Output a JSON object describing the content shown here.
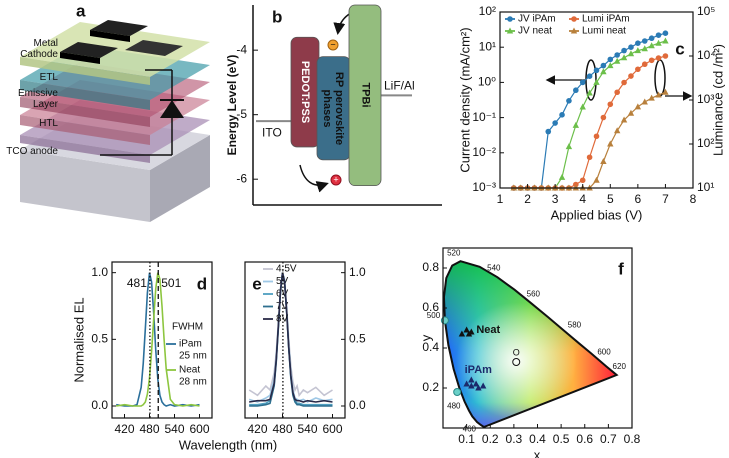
{
  "panel_a": {
    "label": "a",
    "layers": [
      "Metal Cathode",
      "ETL",
      "Emissive Layer",
      "HTL",
      "TCO anode"
    ]
  },
  "panel_b": {
    "label": "b",
    "ylabel": "Energy Level (eV)",
    "ylim": [
      -6.4,
      -3.3
    ],
    "yticks": [
      -4,
      -5,
      -6
    ],
    "electrodes": [
      {
        "name": "ITO",
        "level": -5.1
      },
      {
        "name": "LiF/Al",
        "level": -4.7
      }
    ],
    "layers": [
      {
        "name": "PEDOT:PSS",
        "top": -3.8,
        "bottom": -5.5,
        "color": "#8e3b4a"
      },
      {
        "name": "RP perovskite phases",
        "top": -4.1,
        "bottom": -5.7,
        "color": "#3b6e8a"
      },
      {
        "name": "TPBi",
        "top": -3.3,
        "bottom": -6.1,
        "color": "#94bd7e"
      }
    ],
    "charges": [
      "−",
      "+"
    ]
  },
  "chart_data": [
    {
      "type": "line",
      "label": "c",
      "xlabel": "Applied bias (V)",
      "ylabel": "Current density (mA/cm²)",
      "y2label": "Luminance (cd /m²)",
      "x": [
        1.5,
        1.75,
        2,
        2.25,
        2.5,
        2.75,
        3,
        3.25,
        3.5,
        3.75,
        4,
        4.25,
        4.5,
        4.75,
        5,
        5.25,
        5.5,
        5.75,
        6,
        6.25,
        6.5,
        6.75,
        7
      ],
      "xlim": [
        1,
        8
      ],
      "xticks": [
        1,
        2,
        3,
        4,
        5,
        6,
        7,
        8
      ],
      "log_y": true,
      "ylim": [
        0.001,
        100
      ],
      "yticks": [
        {
          "value": 0.001,
          "label": "10⁻³"
        },
        {
          "value": 0.01,
          "label": "10⁻²"
        },
        {
          "value": 0.1,
          "label": "10⁻¹"
        },
        {
          "value": 1,
          "label": "10⁰"
        },
        {
          "value": 10,
          "label": "10¹"
        },
        {
          "value": 100,
          "label": "10²"
        }
      ],
      "y2lim": [
        10,
        100000
      ],
      "y2ticks": [
        {
          "value": 10,
          "label": "10¹"
        },
        {
          "value": 100,
          "label": "10²"
        },
        {
          "value": 1000,
          "label": "10³"
        },
        {
          "value": 10000,
          "label": "10⁴"
        },
        {
          "value": 100000,
          "label": "10⁵"
        }
      ],
      "series": [
        {
          "name": "JV iPAm",
          "color": "#2b7bb5",
          "marker": "circle",
          "values": [
            0.001,
            0.001,
            0.001,
            0.001,
            0.001,
            0.04,
            0.07,
            0.12,
            0.3,
            0.6,
            1,
            1.5,
            2.2,
            3,
            4.5,
            6,
            8,
            10,
            13,
            15,
            18,
            22,
            25
          ]
        },
        {
          "name": "JV neat",
          "color": "#6cbf4a",
          "marker": "triangle",
          "values": [
            0.001,
            0.001,
            0.001,
            0.001,
            0.001,
            0.001,
            0.001,
            0.002,
            0.015,
            0.06,
            0.2,
            0.5,
            1,
            2,
            3,
            4,
            5,
            6.5,
            8,
            9,
            11,
            13,
            15
          ]
        },
        {
          "name": "Lumi iPAm",
          "color": "#e06a3a",
          "marker": "circle",
          "axis": "y2",
          "values": [
            10,
            10,
            10,
            10,
            10,
            10,
            10,
            10,
            10,
            12,
            15,
            50,
            150,
            400,
            800,
            1500,
            2500,
            3500,
            5000,
            6500,
            8000,
            9000,
            10000
          ]
        },
        {
          "name": "Lumi neat",
          "color": "#b8803c",
          "marker": "triangle",
          "axis": "y2",
          "values": [
            10,
            10,
            10,
            10,
            10,
            10,
            10,
            10,
            10,
            10,
            10,
            10,
            15,
            40,
            100,
            200,
            350,
            500,
            700,
            900,
            1100,
            1300,
            1500
          ]
        }
      ]
    },
    {
      "type": "line",
      "label": "d",
      "xlabel": "Wavelength (nm)",
      "ylabel": "Normalised EL",
      "fwhm_title": "FWHM",
      "x": [
        400,
        420,
        440,
        450,
        460,
        465,
        470,
        475,
        480,
        485,
        490,
        495,
        500,
        505,
        510,
        515,
        520,
        530,
        540,
        560,
        580,
        600
      ],
      "xlim": [
        390,
        630
      ],
      "xticks": [
        420,
        480,
        540,
        600
      ],
      "ylim": [
        -0.09,
        1.08
      ],
      "yticks": [
        {
          "value": 0,
          "label": "0.0"
        },
        {
          "value": 0.5,
          "label": "0.5"
        },
        {
          "value": 1,
          "label": "1.0"
        }
      ],
      "peaks": [
        481,
        501
      ],
      "series": [
        {
          "name": "iPam",
          "fwhm_label": "25 nm",
          "color": "#2a6f9b",
          "values": [
            0.01,
            0,
            0,
            0.01,
            0.14,
            0.32,
            0.58,
            0.85,
            1,
            0.93,
            0.7,
            0.42,
            0.2,
            0.08,
            0.03,
            0.01,
            0,
            0.01,
            0,
            0.01,
            0,
            0.01
          ]
        },
        {
          "name": "Neat",
          "fwhm_label": "28 nm",
          "color": "#8dc63f",
          "values": [
            0,
            0.01,
            0,
            0,
            0,
            0.01,
            0.03,
            0.09,
            0.21,
            0.41,
            0.65,
            0.88,
            1,
            0.95,
            0.75,
            0.5,
            0.28,
            0.05,
            0.01,
            0,
            0.01,
            0
          ]
        }
      ]
    },
    {
      "type": "line",
      "label": "e",
      "ytick_side": "right",
      "x": [
        400,
        420,
        440,
        450,
        460,
        465,
        470,
        475,
        480,
        485,
        490,
        495,
        500,
        505,
        510,
        515,
        520,
        530,
        540,
        560,
        580,
        600
      ],
      "xlim": [
        390,
        630
      ],
      "xticks": [
        420,
        480,
        540,
        600
      ],
      "ylim": [
        -0.09,
        1.08
      ],
      "yticks": [
        {
          "value": 0,
          "label": "0.0"
        },
        {
          "value": 0.5,
          "label": "0.5"
        },
        {
          "value": 1,
          "label": "1.0"
        }
      ],
      "reference_line": 481,
      "series": [
        {
          "name": "4.5V",
          "color": "#c4c4d2",
          "values": [
            0.12,
            0.08,
            0.15,
            0.12,
            0.25,
            0.4,
            0.62,
            0.88,
            1,
            0.95,
            0.74,
            0.5,
            0.3,
            0.18,
            0.12,
            0.15,
            0.08,
            0.12,
            0.1,
            0.14,
            0.08,
            0.12
          ]
        },
        {
          "name": "5V",
          "color": "#9fc8e6",
          "values": [
            0.05,
            0.03,
            0.06,
            0.08,
            0.2,
            0.37,
            0.6,
            0.86,
            1,
            0.94,
            0.72,
            0.46,
            0.25,
            0.12,
            0.06,
            0.05,
            0.04,
            0.05,
            0.03,
            0.06,
            0.04,
            0.05
          ]
        },
        {
          "name": "6V",
          "color": "#4f9fc0",
          "values": [
            0.01,
            0.01,
            0.02,
            0.04,
            0.16,
            0.34,
            0.59,
            0.85,
            1,
            0.93,
            0.71,
            0.44,
            0.22,
            0.09,
            0.04,
            0.02,
            0.02,
            0.01,
            0.01,
            0.01,
            0.01,
            0.01
          ]
        },
        {
          "name": "7V",
          "color": "#2e6f8f",
          "values": [
            0,
            0,
            0.01,
            0.02,
            0.15,
            0.33,
            0.58,
            0.85,
            1,
            0.93,
            0.7,
            0.43,
            0.21,
            0.08,
            0.03,
            0.01,
            0.01,
            0,
            0,
            0,
            0,
            0
          ]
        },
        {
          "name": "8V",
          "color": "#2a2a48",
          "values": [
            0.03,
            0.04,
            0.04,
            0.05,
            0.17,
            0.35,
            0.6,
            0.86,
            1,
            0.93,
            0.71,
            0.44,
            0.23,
            0.1,
            0.05,
            0.04,
            0.04,
            0.03,
            0.04,
            0.03,
            0.04,
            0.03
          ]
        }
      ]
    },
    {
      "type": "scatter",
      "label": "f",
      "xlabel": "x",
      "ylabel": "y",
      "xlim": [
        0,
        0.8
      ],
      "xticks": [
        0.1,
        0.2,
        0.3,
        0.4,
        0.5,
        0.6,
        0.7,
        0.8
      ],
      "ylim": [
        0,
        0.9
      ],
      "yticks": [
        0.2,
        0.4,
        0.6,
        0.8
      ],
      "locus": {
        "x": [
          0.173,
          0.157,
          0.144,
          0.124,
          0.11,
          0.091,
          0.069,
          0.045,
          0.023,
          0.008,
          0.004,
          0.014,
          0.039,
          0.074,
          0.155,
          0.23,
          0.302,
          0.373,
          0.444,
          0.512,
          0.575,
          0.627,
          0.691,
          0.735
        ],
        "y": [
          0.005,
          0.018,
          0.03,
          0.058,
          0.087,
          0.133,
          0.201,
          0.295,
          0.413,
          0.538,
          0.655,
          0.75,
          0.812,
          0.834,
          0.806,
          0.754,
          0.692,
          0.624,
          0.555,
          0.487,
          0.424,
          0.373,
          0.308,
          0.265
        ],
        "labels": [
          null,
          null,
          "460",
          null,
          null,
          "480",
          null,
          null,
          null,
          "500",
          null,
          null,
          null,
          "520",
          null,
          "540",
          null,
          "560",
          null,
          "580",
          null,
          "600",
          "620",
          null
        ]
      },
      "locus_markers": {
        "x": [
          0.008,
          0.06
        ],
        "y": [
          0.538,
          0.18
        ]
      },
      "white_point": {
        "label": "O",
        "x": 0.31,
        "y": 0.33
      },
      "series": [
        {
          "name": "Neat",
          "color": "#111111",
          "x": [
            0.08,
            0.1,
            0.11,
            0.12
          ],
          "y": [
            0.47,
            0.49,
            0.47,
            0.48
          ]
        },
        {
          "name": "iPAm",
          "color": "#1b2a6b",
          "x": [
            0.1,
            0.12,
            0.14,
            0.15,
            0.17,
            0.12
          ],
          "y": [
            0.22,
            0.21,
            0.22,
            0.2,
            0.21,
            0.24
          ]
        }
      ]
    }
  ]
}
